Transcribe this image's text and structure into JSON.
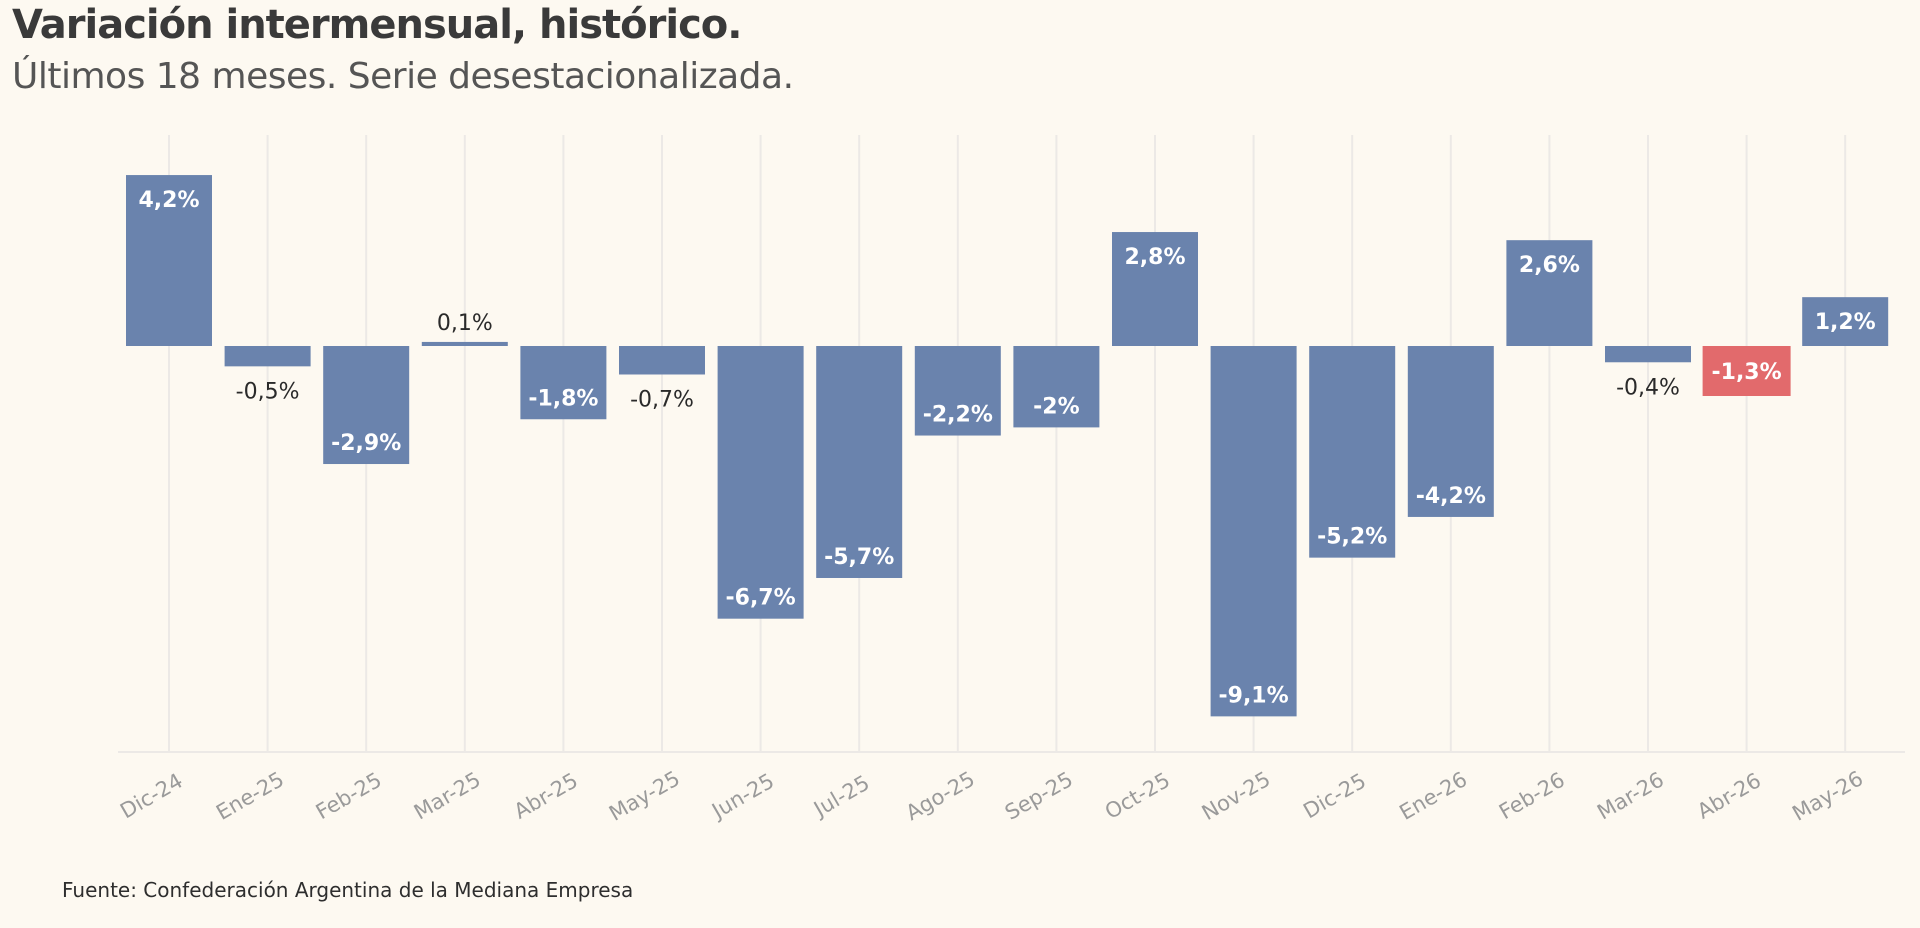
{
  "header": {
    "title": "Variación intermensual, histórico.",
    "subtitle": "Últimos 18 meses. Serie desestacionalizada."
  },
  "footer": {
    "source": "Fuente: Confederación Argentina de la Mediana Empresa"
  },
  "colors": {
    "background": "#fdf9f1",
    "bar": "#6a83ad",
    "highlight": "#e26a6c",
    "grid": "#ece9e6",
    "axis_text": "#9a9a9a",
    "label_dark": "#2a2a2a",
    "label_light": "#ffffff"
  },
  "chart_data": {
    "type": "bar",
    "categories": [
      "Dic-24",
      "Ene-25",
      "Feb-25",
      "Mar-25",
      "Abr-25",
      "May-25",
      "Jun-25",
      "Jul-25",
      "Ago-25",
      "Sep-25",
      "Oct-25",
      "Nov-25",
      "Dic-25",
      "Ene-26",
      "Feb-26",
      "Mar-26",
      "Abr-26",
      "May-26"
    ],
    "values": [
      4.2,
      -0.5,
      -2.9,
      0.1,
      -1.8,
      -0.7,
      -6.7,
      -5.7,
      -2.2,
      -2,
      2.8,
      -9.1,
      -5.2,
      -4.2,
      2.6,
      -0.4,
      -1.3,
      1.2
    ],
    "labels": [
      "4,2%",
      "-0,5%",
      "-2,9%",
      "0,1%",
      "-1,8%",
      "-0,7%",
      "-6,7%",
      "-5,7%",
      "-2,2%",
      "-2%",
      "2,8%",
      "-9,1%",
      "-5,2%",
      "-4,2%",
      "2,6%",
      "-0,4%",
      "-1,3%",
      "1,2%"
    ],
    "highlighted": [
      "Abr-26"
    ],
    "ylim": [
      -10,
      5
    ],
    "grid": true,
    "legend": "none"
  }
}
